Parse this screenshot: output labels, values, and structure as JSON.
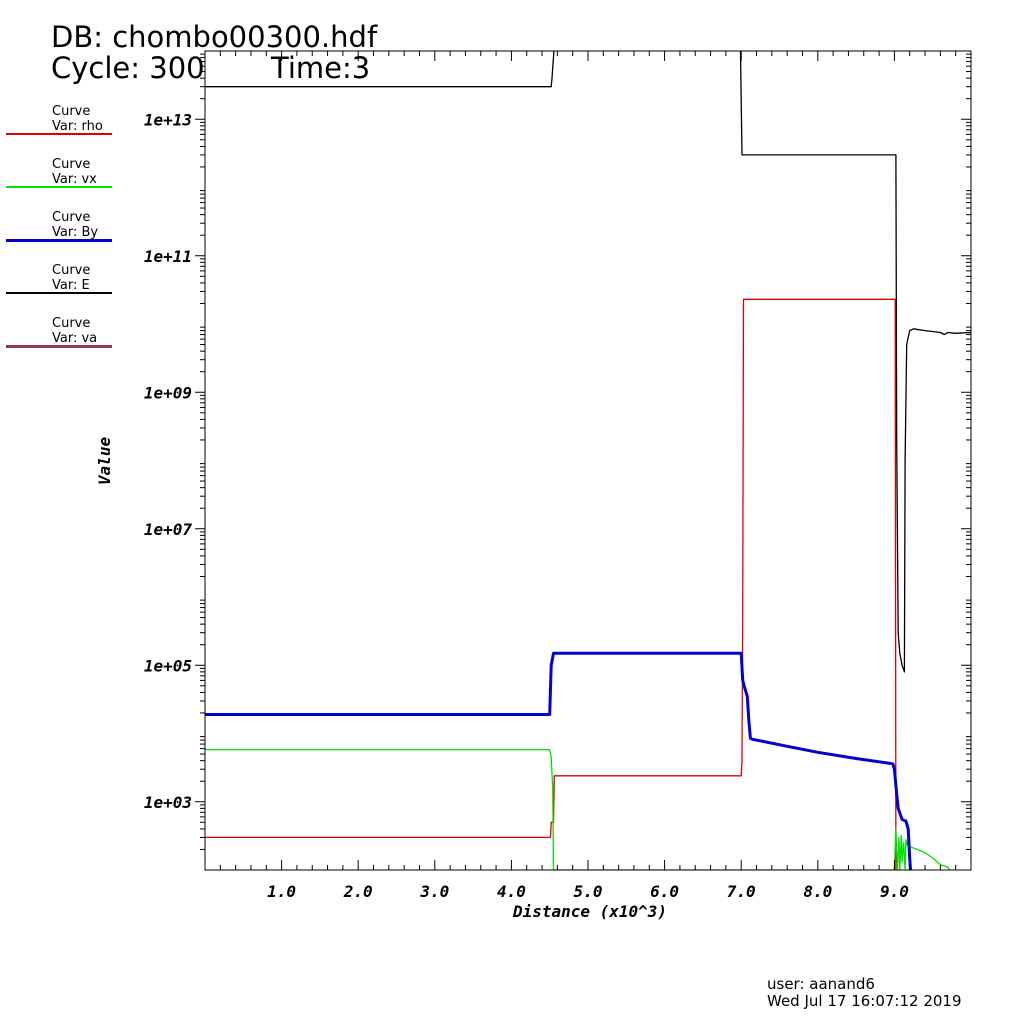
{
  "header": {
    "db": "DB: chombo00300.hdf",
    "cycle": "Cycle: 300",
    "time": "Time:3"
  },
  "legend": [
    {
      "line1": "Curve",
      "line2": "Var: rho",
      "color": "#e00000"
    },
    {
      "line1": "Curve",
      "line2": "Var: vx",
      "color": "#00e000"
    },
    {
      "line1": "Curve",
      "line2": "Var: By",
      "color": "#0000d0"
    },
    {
      "line1": "Curve",
      "line2": "Var: E",
      "color": "#000000"
    },
    {
      "line1": "Curve",
      "line2": "Var: va",
      "color": "#8a3a5a"
    }
  ],
  "footer": {
    "user": "user: aanand6",
    "date": "Wed Jul 17 16:07:12 2019"
  },
  "chart_data": {
    "type": "line",
    "xlabel": "Distance (x10^3)",
    "ylabel": "Value",
    "x_scale": "linear",
    "y_scale": "log",
    "xlim": [
      0,
      10
    ],
    "ylim": [
      100,
      100000000000000.0
    ],
    "x_ticks": [
      1,
      2,
      3,
      4,
      5,
      6,
      7,
      8,
      9
    ],
    "x_tick_labels": [
      "1.0",
      "2.0",
      "3.0",
      "4.0",
      "5.0",
      "6.0",
      "7.0",
      "8.0",
      "9.0"
    ],
    "y_ticks": [
      1000,
      100000,
      10000000,
      1000000000,
      100000000000,
      10000000000000
    ],
    "y_tick_labels": [
      "1e+03",
      "1e+05",
      "1e+07",
      "1e+09",
      "1e+11",
      "1e+13"
    ],
    "grid": false,
    "legend_position": "left",
    "series": [
      {
        "name": "rho",
        "color": "#e00000",
        "width": 1.3,
        "x": [
          0,
          4.51,
          4.52,
          4.55,
          4.56,
          7.0,
          7.01,
          7.02,
          7.03,
          9.01,
          9.02
        ],
        "y": [
          300,
          300,
          500,
          500,
          2400,
          2400,
          4000,
          500000.0,
          23000000000.0,
          23000000000.0,
          100
        ]
      },
      {
        "name": "vx",
        "color": "#00e000",
        "width": 1.3,
        "x": [
          0,
          4.5,
          4.52,
          4.54,
          4.55,
          9.0,
          9.02,
          9.04,
          9.06,
          9.07,
          9.09,
          9.1,
          9.12,
          9.14,
          9.15,
          9.17,
          9.2,
          9.3,
          9.4,
          9.5,
          9.6,
          9.7,
          9.72
        ],
        "y": [
          5800,
          5800,
          4500,
          1500,
          100,
          100,
          400,
          100,
          300,
          100,
          320,
          130,
          250,
          100,
          280,
          230,
          220,
          200,
          180,
          150,
          120,
          110,
          100
        ]
      },
      {
        "name": "By",
        "color": "#0000d0",
        "width": 3,
        "x": [
          0,
          4.5,
          4.52,
          4.55,
          4.6,
          7.0,
          7.02,
          7.05,
          7.08,
          7.1,
          7.12,
          7.15,
          7.3,
          7.6,
          8.0,
          8.5,
          8.98,
          9.0,
          9.03,
          9.05,
          9.1,
          9.15,
          9.18,
          9.2,
          9.21
        ],
        "y": [
          19000,
          19000,
          100000,
          150000,
          150000,
          150000,
          60000,
          45000,
          35000,
          15000,
          8500,
          8200,
          7600,
          6500,
          5300,
          4300,
          3600,
          3000,
          1300,
          800,
          550,
          520,
          400,
          150,
          100
        ]
      },
      {
        "name": "E",
        "color": "#000000",
        "width": 1.3,
        "x": [
          0,
          4.52,
          4.53,
          4.56,
          4.57,
          6.98,
          6.99,
          7.01,
          7.02,
          9.02,
          9.03,
          9.05,
          9.07,
          9.1,
          9.13,
          9.14,
          9.16,
          9.2,
          9.25,
          9.4,
          9.6,
          9.65,
          9.7,
          9.8,
          10.0
        ],
        "y": [
          30000000000000.0,
          30000000000000.0,
          40000000000000.0,
          120000000000000.0,
          1000000000000000.0,
          1000000000000000.0,
          120000000000000.0,
          3000000000000.0,
          3000000000000.0,
          3000000000000.0,
          200000000.0,
          300000.0,
          150000.0,
          100000.0,
          80000.0,
          100000000.0,
          5000000000.0,
          8000000000.0,
          8500000000.0,
          8000000000.0,
          7500000000.0,
          7000000000.0,
          7500000000.0,
          7300000000.0,
          7500000000.0
        ]
      },
      {
        "name": "va",
        "color": "#8a3a5a",
        "width": 1.3,
        "x": [],
        "y": []
      }
    ]
  }
}
